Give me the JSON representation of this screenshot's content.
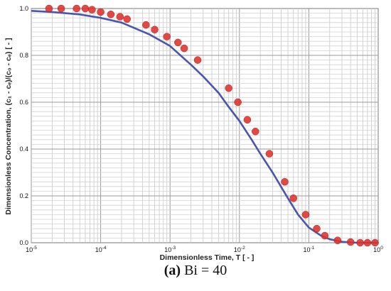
{
  "chart_data": {
    "type": "scatter",
    "xlabel": "Dimensionless Time, T  [ - ]",
    "ylabel": "Dimensionless Concentration,  (c₁ - cₑ)/(c₀ - cₑ)  [ - ]",
    "x_scale": "log",
    "xlim": [
      1e-05,
      1
    ],
    "ylim": [
      0,
      1
    ],
    "x_ticks": [
      {
        "value": 1e-05,
        "base": "10",
        "exp": "-5"
      },
      {
        "value": 0.0001,
        "base": "10",
        "exp": "-4"
      },
      {
        "value": 0.001,
        "base": "10",
        "exp": "-3"
      },
      {
        "value": 0.01,
        "base": "10",
        "exp": "-2"
      },
      {
        "value": 0.1,
        "base": "10",
        "exp": "-1"
      },
      {
        "value": 1,
        "base": "10",
        "exp": "0"
      }
    ],
    "y_ticks": [
      "0.0",
      "0.2",
      "0.4",
      "0.6",
      "0.8",
      "1.0"
    ],
    "grid": true,
    "series": [
      {
        "kind": "line",
        "color": "#4a55b0",
        "x": [
          1e-05,
          2e-05,
          5e-05,
          0.0001,
          0.0002,
          0.0005,
          0.001,
          0.002,
          0.003,
          0.005,
          0.007,
          0.01,
          0.015,
          0.02,
          0.03,
          0.05,
          0.07,
          0.1,
          0.15,
          0.2,
          0.3,
          0.5,
          1.0
        ],
        "y": [
          0.99,
          0.985,
          0.975,
          0.96,
          0.94,
          0.89,
          0.84,
          0.76,
          0.71,
          0.64,
          0.58,
          0.52,
          0.44,
          0.38,
          0.3,
          0.19,
          0.12,
          0.065,
          0.03,
          0.015,
          0.004,
          0.0,
          0.0
        ]
      },
      {
        "kind": "points",
        "color": "#e0302a",
        "x": [
          1.8e-05,
          2.7e-05,
          4.5e-05,
          6e-05,
          7.5e-05,
          0.0001,
          0.00014,
          0.00019,
          0.00024,
          0.00045,
          0.0006,
          0.0009,
          0.0013,
          0.0016,
          0.0025,
          0.007,
          0.0095,
          0.013,
          0.017,
          0.027,
          0.045,
          0.06,
          0.09,
          0.13,
          0.17,
          0.26,
          0.4,
          0.55,
          0.7,
          0.9
        ],
        "y": [
          1.0,
          1.0,
          1.0,
          1.0,
          0.995,
          0.985,
          0.975,
          0.965,
          0.955,
          0.93,
          0.91,
          0.88,
          0.855,
          0.83,
          0.78,
          0.66,
          0.6,
          0.525,
          0.475,
          0.38,
          0.26,
          0.19,
          0.12,
          0.06,
          0.03,
          0.01,
          0.003,
          0.0,
          0.0,
          0.0
        ]
      }
    ]
  },
  "caption": {
    "label": "(a)",
    "text": " Bi = 40"
  }
}
